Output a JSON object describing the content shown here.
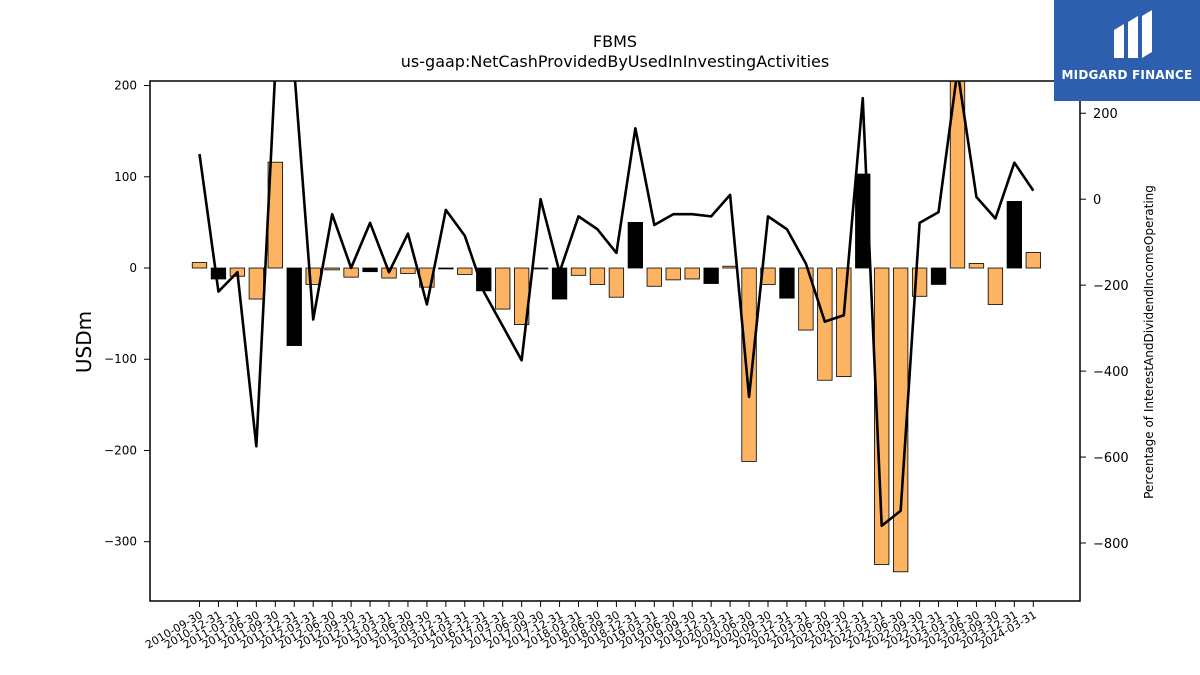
{
  "chart_data": {
    "type": "bar",
    "title": "FBMS",
    "subtitle": "us-gaap:NetCashProvidedByUsedInInvestingActivities",
    "ylabel": "USDm",
    "y2label": "Percentage of InterestAndDividendIncomeOperating",
    "ylim": [
      -365,
      205
    ],
    "y2lim": [
      -935,
      275
    ],
    "yticks": [
      -300,
      -200,
      -100,
      0,
      100,
      200
    ],
    "y2ticks": [
      -800,
      -600,
      -400,
      -200,
      0,
      200
    ],
    "categories": [
      "2010-09-30",
      "2010-12-31",
      "2011-03-31",
      "2011-06-30",
      "2011-09-30",
      "2011-12-31",
      "2012-03-31",
      "2012-06-30",
      "2012-09-30",
      "2012-12-31",
      "2013-03-31",
      "2013-06-30",
      "2013-09-30",
      "2013-12-31",
      "2014-03-31",
      "2016-12-31",
      "2017-03-31",
      "2017-06-30",
      "2017-09-30",
      "2017-12-31",
      "2018-03-31",
      "2018-06-30",
      "2018-09-30",
      "2018-12-31",
      "2019-03-31",
      "2019-06-30",
      "2019-09-30",
      "2019-12-31",
      "2020-03-31",
      "2020-06-30",
      "2020-09-30",
      "2020-12-31",
      "2021-03-31",
      "2021-06-30",
      "2021-09-30",
      "2021-12-31",
      "2022-03-31",
      "2022-06-30",
      "2022-09-30",
      "2022-12-31",
      "2023-03-31",
      "2023-06-30",
      "2023-09-30",
      "2023-12-31",
      "2024-03-31"
    ],
    "series": [
      {
        "type": "bar",
        "values": [
          6,
          -12,
          -9,
          -34,
          116,
          -85,
          -18,
          -2,
          -10,
          -4,
          -11,
          -6,
          -21,
          -1,
          -7,
          -25,
          -45,
          -62,
          -1,
          -34,
          -8,
          -18,
          -32,
          50,
          -20,
          -13,
          -12,
          -17,
          2,
          -212,
          -18,
          -33,
          -68,
          -123,
          -119,
          103,
          -325,
          -333,
          -31,
          -18,
          220,
          5,
          -40,
          73,
          17
        ],
        "colors": [
          "orange",
          "black",
          "orange",
          "orange",
          "orange",
          "black",
          "orange",
          "orange",
          "orange",
          "black",
          "orange",
          "orange",
          "orange",
          "black",
          "orange",
          "black",
          "orange",
          "orange",
          "orange",
          "black",
          "orange",
          "orange",
          "orange",
          "black",
          "orange",
          "orange",
          "orange",
          "black",
          "orange",
          "orange",
          "orange",
          "black",
          "orange",
          "orange",
          "orange",
          "black",
          "orange",
          "orange",
          "orange",
          "black",
          "orange",
          "orange",
          "orange",
          "black",
          "orange"
        ]
      },
      {
        "type": "line",
        "values": [
          105,
          -215,
          -170,
          -575,
          300,
          300,
          -280,
          -35,
          -160,
          -55,
          -170,
          -80,
          -245,
          -25,
          -85,
          -215,
          -295,
          -375,
          0,
          -170,
          -40,
          -70,
          -125,
          165,
          -60,
          -35,
          -35,
          -40,
          10,
          -460,
          -40,
          -70,
          -150,
          -285,
          -270,
          235,
          -760,
          -725,
          -55,
          -30,
          300,
          5,
          -45,
          85,
          20
        ]
      }
    ],
    "colors": {
      "orange": "#fdb462",
      "black": "#000000"
    },
    "legend": "none"
  },
  "logo": {
    "text": "MIDGARD FINANCE"
  }
}
